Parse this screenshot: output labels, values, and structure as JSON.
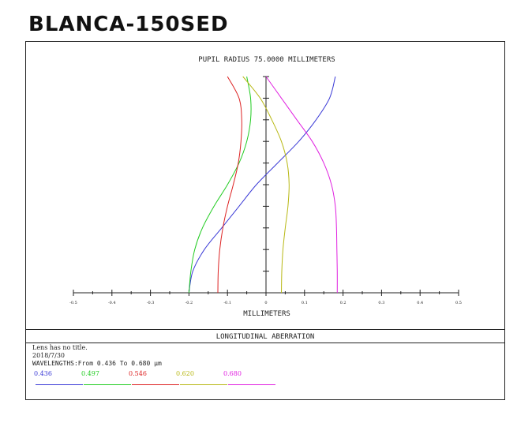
{
  "heading": "BLANCA-150SED",
  "chart_data": {
    "type": "line",
    "title": "PUPIL RADIUS 75.0000 MILLIMETERS",
    "xlabel": "MILLIMETERS",
    "ylabel": "",
    "xlim": [
      -0.5,
      0.5
    ],
    "ylim": [
      0,
      1
    ],
    "x_ticks": [
      "-0.5",
      "-0.4",
      "-0.3",
      "-0.2",
      "-0.1",
      "0",
      "0.1",
      "0.2",
      "0.3",
      "0.4",
      "0.5"
    ],
    "y_tick_count": 10,
    "series": [
      {
        "name": "0.436",
        "color": "#3a3ad6",
        "y": [
          0,
          0.1,
          0.2,
          0.3,
          0.4,
          0.5,
          0.6,
          0.7,
          0.8,
          0.9,
          1.0
        ],
        "x": [
          -0.2,
          -0.19,
          -0.16,
          -0.115,
          -0.07,
          -0.025,
          0.03,
          0.085,
          0.13,
          0.165,
          0.18
        ]
      },
      {
        "name": "0.497",
        "color": "#22cc22",
        "y": [
          0,
          0.1,
          0.2,
          0.3,
          0.4,
          0.5,
          0.6,
          0.7,
          0.8,
          0.9,
          1.0
        ],
        "x": [
          -0.2,
          -0.195,
          -0.185,
          -0.165,
          -0.135,
          -0.1,
          -0.07,
          -0.05,
          -0.04,
          -0.04,
          -0.05
        ]
      },
      {
        "name": "0.546",
        "color": "#dd2222",
        "y": [
          0,
          0.1,
          0.2,
          0.3,
          0.4,
          0.5,
          0.6,
          0.7,
          0.8,
          0.9,
          1.0
        ],
        "x": [
          -0.125,
          -0.124,
          -0.12,
          -0.112,
          -0.1,
          -0.085,
          -0.072,
          -0.065,
          -0.063,
          -0.07,
          -0.1
        ]
      },
      {
        "name": "0.620",
        "color": "#b8b814",
        "y": [
          0,
          0.1,
          0.2,
          0.3,
          0.4,
          0.5,
          0.6,
          0.7,
          0.8,
          0.9,
          1.0
        ],
        "x": [
          0.04,
          0.041,
          0.044,
          0.05,
          0.057,
          0.06,
          0.055,
          0.04,
          0.015,
          -0.015,
          -0.06
        ]
      },
      {
        "name": "0.680",
        "color": "#e020e0",
        "y": [
          0,
          0.1,
          0.2,
          0.3,
          0.4,
          0.5,
          0.6,
          0.7,
          0.8,
          0.9,
          1.0
        ],
        "x": [
          0.185,
          0.185,
          0.184,
          0.183,
          0.18,
          0.17,
          0.15,
          0.12,
          0.08,
          0.04,
          0.0
        ]
      }
    ]
  },
  "footer": {
    "section_title": "LONGITUDINAL ABERRATION",
    "line1": "Lens has no title.",
    "line2": "2018/7/30",
    "line3": "WAVELENGTHS:From 0.436 To 0.680 µm"
  },
  "wavelengths": [
    {
      "label": "0.436",
      "color": "#3a3ad6"
    },
    {
      "label": "0.497",
      "color": "#22cc22"
    },
    {
      "label": "0.546",
      "color": "#dd2222"
    },
    {
      "label": "0.620",
      "color": "#b8b814"
    },
    {
      "label": "0.680",
      "color": "#e020e0"
    }
  ]
}
